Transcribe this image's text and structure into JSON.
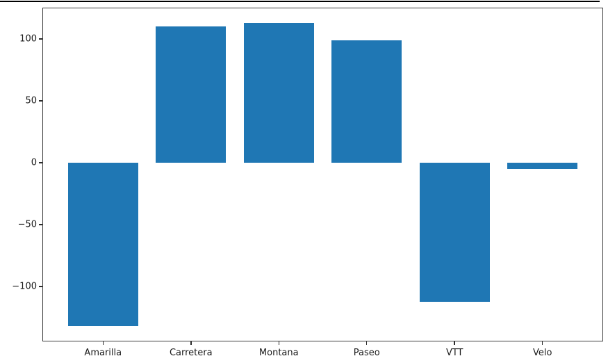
{
  "chart_data": {
    "type": "bar",
    "title": "",
    "xlabel": "",
    "ylabel": "",
    "categories": [
      "Amarilla",
      "Carretera",
      "Montana",
      "Paseo",
      "VTT",
      "Velo"
    ],
    "values": [
      -132,
      110,
      113,
      99,
      -112,
      -5
    ],
    "bar_color": "#1f77b4",
    "bar_width": 0.8,
    "yticks": [
      100,
      50,
      0,
      -50,
      -100
    ],
    "ytick_labels": [
      "100",
      "50",
      "0",
      "−50",
      "−100"
    ],
    "ylim": [
      -144.25,
      125.25
    ],
    "xlim": [
      -0.69,
      5.69
    ],
    "grid": false,
    "legend": false
  },
  "figure": {
    "background": "#ffffff",
    "spine_color": "#3a3a3a",
    "tick_color": "#2b2b2b",
    "label_color": "#1a1a1a",
    "top_rule_color": "#000000"
  }
}
